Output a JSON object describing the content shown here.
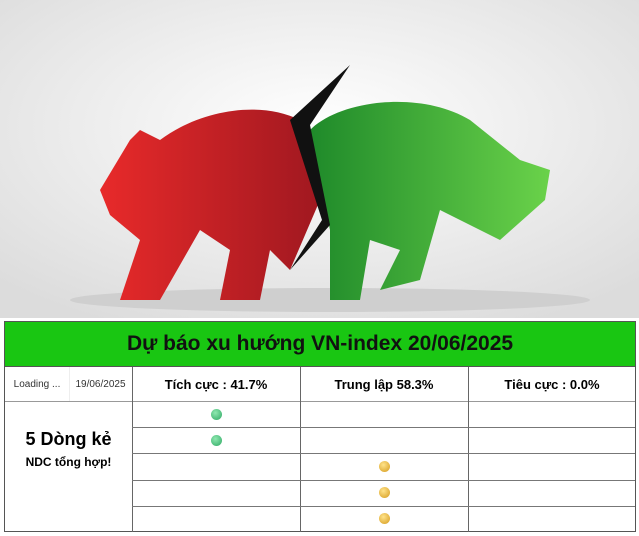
{
  "hero": {
    "image": "bear-vs-bull-illustration",
    "colors": {
      "bear": "#d6262b",
      "bull": "#3cb034"
    }
  },
  "title": "Dự báo xu hướng VN-index 20/06/2025",
  "header": {
    "loading": "Loading ...",
    "date": "19/06/2025",
    "positive": "Tích cực : 41.7%",
    "neutral": "Trung lập 58.3%",
    "negative": "Tiêu cực : 0.0%"
  },
  "side": {
    "line1": "5 Dòng kẻ",
    "line2": "NDC tổng hợp!"
  },
  "rows": [
    {
      "signal": "positive"
    },
    {
      "signal": "positive"
    },
    {
      "signal": "neutral"
    },
    {
      "signal": "neutral"
    },
    {
      "signal": "neutral"
    }
  ],
  "colors": {
    "title_bg": "#19c612",
    "positive_dot": "#2ea863",
    "neutral_dot": "#d59a1c"
  }
}
